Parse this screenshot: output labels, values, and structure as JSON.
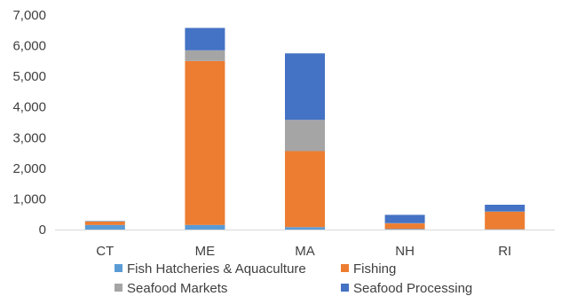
{
  "chart_data": {
    "type": "bar",
    "stacked": true,
    "categories": [
      "CT",
      "ME",
      "MA",
      "NH",
      "RI"
    ],
    "series": [
      {
        "name": "Fish Hatcheries & Aquaculture",
        "color": "#5B9BD5",
        "values": [
          150,
          150,
          80,
          20,
          10
        ]
      },
      {
        "name": "Fishing",
        "color": "#ED7D31",
        "values": [
          110,
          5350,
          2480,
          180,
          570
        ]
      },
      {
        "name": "Seafood Markets",
        "color": "#A5A5A5",
        "values": [
          10,
          350,
          1020,
          10,
          10
        ]
      },
      {
        "name": "Seafood Processing",
        "color": "#4472C4",
        "values": [
          10,
          730,
          2170,
          270,
          220
        ]
      }
    ],
    "ylim": [
      0,
      7000
    ],
    "yticks": [
      "0",
      "1,000",
      "2,000",
      "3,000",
      "4,000",
      "5,000",
      "6,000",
      "7,000"
    ],
    "grid": false,
    "legend_position": "bottom",
    "title": "",
    "xlabel": "",
    "ylabel": ""
  }
}
